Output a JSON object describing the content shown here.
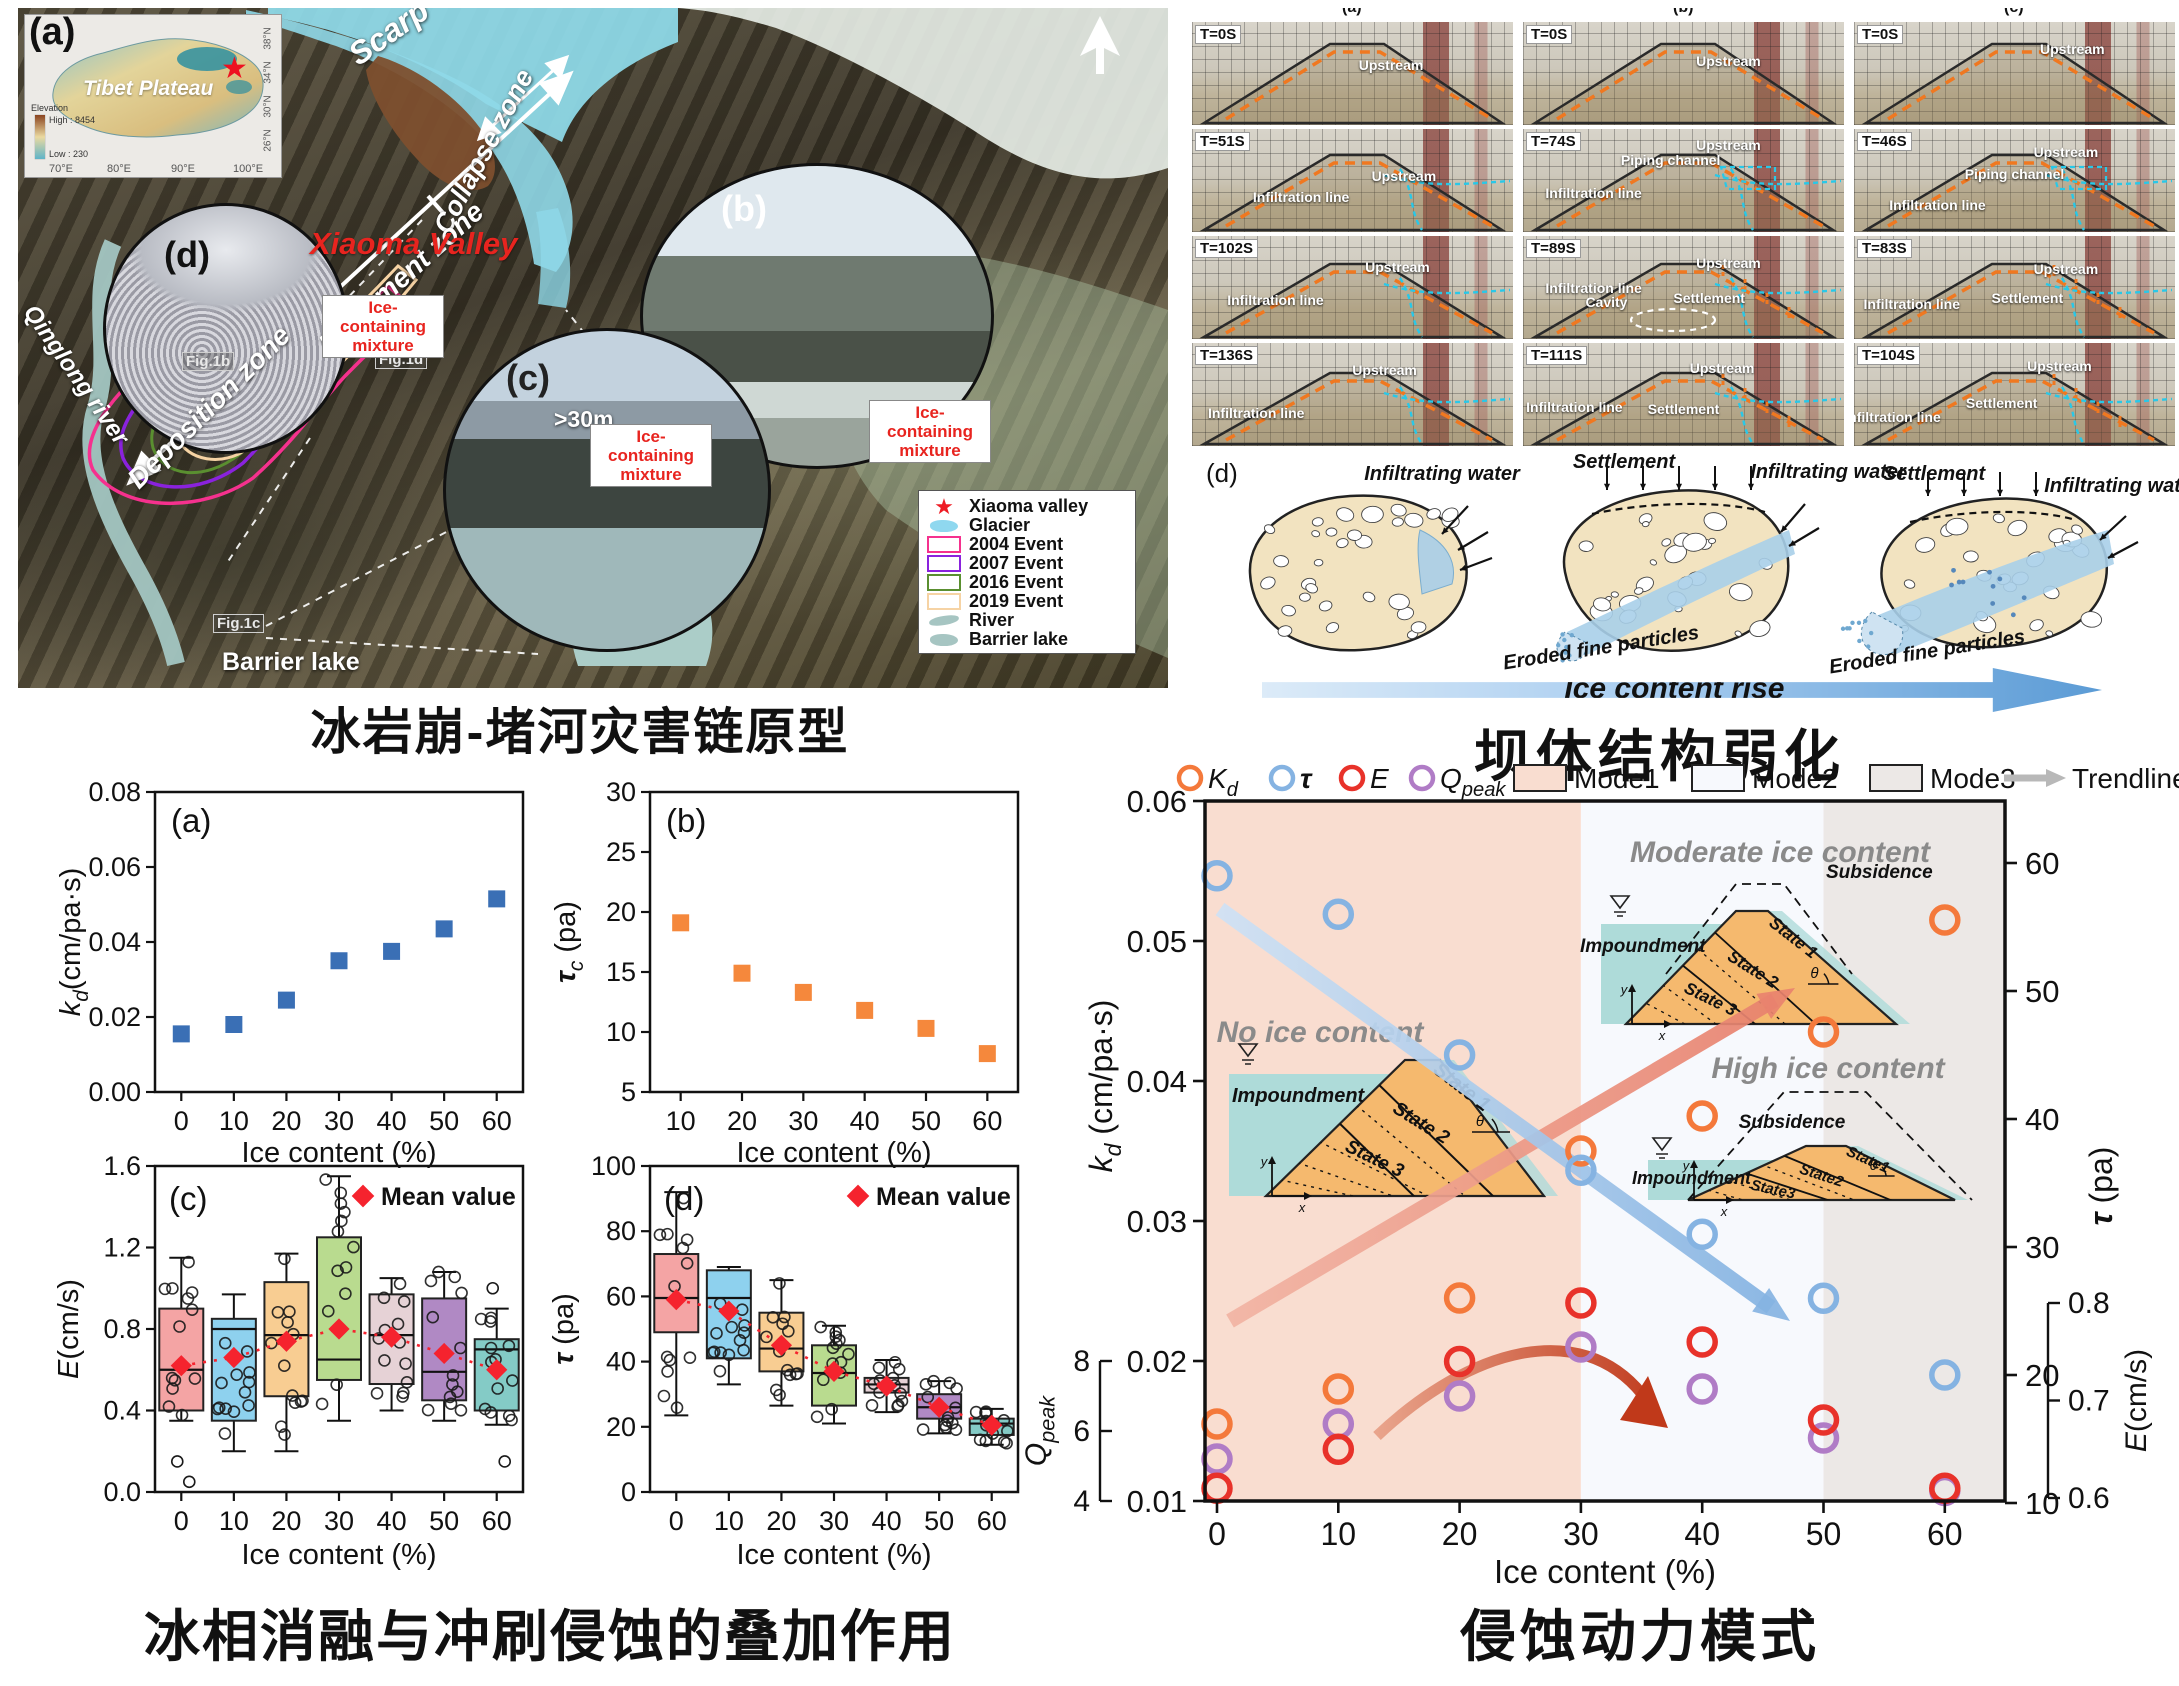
{
  "captions": {
    "map": "冰岩崩-堵河灾害链原型",
    "dam": "坝体结构弱化",
    "mech": "冰相消融与冲刷侵蚀的叠加作用",
    "mode": "侵蚀动力模式"
  },
  "map": {
    "panel_label": "(a)",
    "inset": {
      "title": "Tibet Plateau",
      "elevation": "Elevation",
      "high": "High : 8454",
      "low": "Low : 230",
      "lons": [
        "70°E",
        "80°E",
        "90°E",
        "100°E"
      ],
      "lats": [
        "38°N",
        "34°N",
        "30°N",
        "26°N"
      ]
    },
    "labels": {
      "scarp": "Scarp",
      "collapse_zone": "Collapse zone",
      "movement_zone": "Movement zone",
      "deposition_zone": "Deposition zone",
      "valley": "Xiaoma Valley",
      "qinglong_river": "Qinglong river",
      "barrier_lake": "Barrier lake",
      "fig1b": "Fig.1b",
      "fig1c": "Fig.1c",
      "fig1d": "Fig.1d",
      "inset_b": "(b)",
      "inset_c": "(c)",
      "inset_d": "(d)",
      "height": ">30m",
      "ice_mixture": "Ice-containing mixture"
    },
    "legend": [
      {
        "label": "Xiaoma valley",
        "swatch": "star",
        "color": "#ee1c25"
      },
      {
        "label": "Glacier",
        "swatch": "lake",
        "color": "#8fd8ef"
      },
      {
        "label": "2004 Event",
        "swatch": "rect",
        "color": "#f5318e"
      },
      {
        "label": "2007 Event",
        "swatch": "rect",
        "color": "#8a22dd"
      },
      {
        "label": "2016 Event",
        "swatch": "rect",
        "color": "#5a8f30"
      },
      {
        "label": "2019 Event",
        "swatch": "rect",
        "color": "#f6d3a4"
      },
      {
        "label": "River",
        "swatch": "river",
        "color": "#a6c5c2"
      },
      {
        "label": "Barrier lake",
        "swatch": "lake",
        "color": "#a6c5c2"
      }
    ]
  },
  "experiments": {
    "col_labels": [
      "(a)",
      "(b)",
      "(c)"
    ],
    "rows": [
      [
        {
          "t": "T=0S",
          "ann": [
            [
              "Upstream",
              62,
              42
            ]
          ],
          "f": {}
        },
        {
          "t": "T=0S",
          "ann": [
            [
              "Upstream",
              64,
              38
            ]
          ],
          "f": {}
        },
        {
          "t": "T=0S",
          "ann": [
            [
              "Upstream",
              68,
              26
            ]
          ],
          "f": {}
        }
      ],
      [
        {
          "t": "T=51S",
          "ann": [
            [
              "Upstream",
              66,
              46
            ],
            [
              "Infiltration line",
              34,
              66
            ]
          ],
          "f": {
            "infil": true
          }
        },
        {
          "t": "T=74S",
          "ann": [
            [
              "Upstream",
              64,
              16
            ],
            [
              "Piping channel",
              46,
              30
            ],
            [
              "Infiltration line",
              22,
              62
            ]
          ],
          "f": {
            "infil": true,
            "piping": true
          }
        },
        {
          "t": "T=46S",
          "ann": [
            [
              "Upstream",
              66,
              22
            ],
            [
              "Piping channel",
              50,
              44
            ],
            [
              "Infiltration line",
              26,
              74
            ]
          ],
          "f": {
            "infil": true,
            "piping": true
          }
        }
      ],
      [
        {
          "t": "T=102S",
          "ann": [
            [
              "Upstream",
              64,
              30
            ],
            [
              "Infiltration line",
              26,
              62
            ]
          ],
          "f": {
            "infil": true
          }
        },
        {
          "t": "T=89S",
          "ann": [
            [
              "Upstream",
              64,
              26
            ],
            [
              "Infiltration line",
              22,
              50
            ],
            [
              "Cavity",
              26,
              64
            ],
            [
              "Settlement",
              58,
              60
            ]
          ],
          "f": {
            "infil": true,
            "settle": true,
            "cavity": true
          }
        },
        {
          "t": "T=83S",
          "ann": [
            [
              "Upstream",
              66,
              32
            ],
            [
              "Infiltration line",
              18,
              66
            ],
            [
              "Settlement",
              54,
              60
            ]
          ],
          "f": {
            "infil": true,
            "settle": true
          }
        }
      ],
      [
        {
          "t": "T=136S",
          "ann": [
            [
              "Upstream",
              60,
              26
            ],
            [
              "Infiltration line",
              20,
              68
            ]
          ],
          "f": {
            "infil": true
          }
        },
        {
          "t": "T=111S",
          "ann": [
            [
              "Upstream",
              62,
              24
            ],
            [
              "Infiltration line",
              16,
              62
            ],
            [
              "Settlement",
              50,
              64
            ]
          ],
          "f": {
            "infil": true,
            "settle": true
          }
        },
        {
          "t": "T=104S",
          "ann": [
            [
              "Upstream",
              64,
              22
            ],
            [
              "Infiltration line",
              12,
              72
            ],
            [
              "Settlement",
              46,
              58
            ]
          ],
          "f": {
            "infil": true,
            "settle": true
          }
        }
      ]
    ],
    "schematic": {
      "label": "(d)",
      "infiltrating": "Infiltrating water",
      "settlement": "Settlement",
      "eroded": "Eroded fine particles",
      "arrow": "Ice content rise"
    }
  },
  "chart_data": [
    {
      "id": "a",
      "type": "scatter",
      "panel": "(a)",
      "marker": "square",
      "color": "#3a6fb5",
      "xlabel": "Ice content (%)",
      "ylabel_parts": [
        [
          "k",
          "i"
        ],
        [
          "d",
          "si"
        ],
        [
          "(cm/pa·s)",
          "n"
        ]
      ],
      "xlim": [
        -5,
        65
      ],
      "ylim": [
        0,
        0.08
      ],
      "xticks": [
        0,
        10,
        20,
        30,
        40,
        50,
        60
      ],
      "yticks": [
        0,
        0.02,
        0.04,
        0.06,
        0.08
      ],
      "ytick_labels": [
        "0.00",
        "0.02",
        "0.04",
        "0.06",
        "0.08"
      ],
      "x": [
        0,
        10,
        20,
        30,
        40,
        50,
        60
      ],
      "y": [
        0.0155,
        0.018,
        0.0245,
        0.035,
        0.0375,
        0.0435,
        0.0515
      ]
    },
    {
      "id": "b",
      "type": "scatter",
      "panel": "(b)",
      "marker": "square",
      "color": "#f5883c",
      "xlabel": "Ice content (%)",
      "ylabel_parts": [
        [
          "τ",
          "bi"
        ],
        [
          "c",
          "si"
        ],
        [
          " (pa)",
          "n"
        ]
      ],
      "xlim": [
        5,
        65
      ],
      "ylim": [
        5,
        30
      ],
      "xticks": [
        10,
        20,
        30,
        40,
        50,
        60
      ],
      "yticks": [
        5,
        10,
        15,
        20,
        25,
        30
      ],
      "ytick_labels": [
        "5",
        "10",
        "15",
        "20",
        "25",
        "30"
      ],
      "x": [
        10,
        20,
        30,
        40,
        50,
        60
      ],
      "y": [
        19.1,
        14.9,
        13.3,
        11.8,
        10.3,
        8.2
      ]
    },
    {
      "id": "c",
      "type": "box",
      "panel": "(c)",
      "xlabel": "Ice content (%)",
      "ylabel_parts": [
        [
          "E",
          "i"
        ],
        [
          "(cm/s)",
          "n"
        ]
      ],
      "legend": "Mean value",
      "mean_color": "#f5232e",
      "xlim": [
        -5,
        65
      ],
      "ylim": [
        0,
        1.6
      ],
      "yticks": [
        0,
        0.4,
        0.8,
        1.2,
        1.6
      ],
      "ytick_labels": [
        "0.0",
        "0.4",
        "0.8",
        "1.2",
        "1.6"
      ],
      "categories": [
        0,
        10,
        20,
        30,
        40,
        50,
        60
      ],
      "box_colors": [
        "#f4a4a4",
        "#8ed1ee",
        "#f8cd92",
        "#b9db8f",
        "#e6d2d6",
        "#b089c4",
        "#84cbc6"
      ],
      "boxes": [
        [
          0.35,
          0.4,
          0.6,
          0.9,
          1.15
        ],
        [
          0.2,
          0.35,
          0.8,
          0.85,
          0.97
        ],
        [
          0.2,
          0.47,
          0.77,
          1.03,
          1.17
        ],
        [
          0.35,
          0.55,
          0.65,
          1.25,
          1.55
        ],
        [
          0.4,
          0.53,
          0.77,
          0.97,
          1.05
        ],
        [
          0.35,
          0.45,
          0.59,
          0.95,
          1.08
        ],
        [
          0.33,
          0.4,
          0.7,
          0.75,
          0.9
        ]
      ],
      "means": [
        0.62,
        0.66,
        0.74,
        0.8,
        0.76,
        0.68,
        0.6
      ],
      "outliers": [
        [
          0.15,
          0.05
        ],
        [],
        [],
        [],
        [],
        [],
        [
          1.0,
          0.15
        ]
      ]
    },
    {
      "id": "d",
      "type": "box",
      "panel": "(d)",
      "xlabel": "Ice content (%)",
      "ylabel_parts": [
        [
          "τ",
          "bi"
        ],
        [
          " (pa)",
          "n"
        ]
      ],
      "legend": "Mean value",
      "mean_color": "#f5232e",
      "xlim": [
        -5,
        65
      ],
      "ylim": [
        0,
        100
      ],
      "yticks": [
        0,
        20,
        40,
        60,
        80,
        100
      ],
      "ytick_labels": [
        "0",
        "20",
        "40",
        "60",
        "80",
        "100"
      ],
      "categories": [
        0,
        10,
        20,
        30,
        40,
        50,
        60
      ],
      "box_colors": [
        "#f4a4a4",
        "#8ed1ee",
        "#f8cd92",
        "#b9db8f",
        "#e6d2d6",
        "#b089c4",
        "#84cbc6"
      ],
      "boxes": [
        [
          23.5,
          49,
          59.5,
          73,
          92
        ],
        [
          33,
          41,
          59.5,
          68,
          69
        ],
        [
          26.5,
          37,
          44,
          55,
          65
        ],
        [
          21,
          26.5,
          36.5,
          45,
          51
        ],
        [
          24.5,
          30.5,
          33,
          35,
          40.5
        ],
        [
          18,
          22.5,
          26,
          30,
          34
        ],
        [
          14.5,
          17.5,
          21,
          22.5,
          25.5
        ]
      ],
      "means": [
        59,
        55.5,
        45,
        37,
        32.5,
        26,
        20.5
      ],
      "outliers": [
        [],
        [],
        [],
        [],
        [],
        [],
        []
      ]
    },
    {
      "id": "mode",
      "type": "mode-chart",
      "xlabel": "Ice content (%)",
      "xticks": [
        0,
        10,
        20,
        30,
        40,
        50,
        60
      ],
      "x": [
        0,
        10,
        20,
        30,
        40,
        50,
        60
      ],
      "left_axis": {
        "label_parts": [
          [
            "k",
            "i"
          ],
          [
            "d",
            "si"
          ],
          [
            " (cm/pa·s)",
            "n"
          ]
        ],
        "ticks": [
          0.01,
          0.02,
          0.03,
          0.04,
          0.05,
          0.06
        ],
        "tick_labels": [
          "0.01",
          "0.02",
          "0.03",
          "0.04",
          "0.05",
          "0.06"
        ],
        "lim": [
          0.01,
          0.06
        ]
      },
      "right_axis": {
        "label_parts": [
          [
            "τ",
            "bi"
          ],
          [
            " (pa)",
            "n"
          ]
        ],
        "ticks": [
          10,
          20,
          30,
          40,
          50,
          60
        ],
        "lim": [
          10,
          60
        ]
      },
      "q_axis": {
        "label_parts": [
          [
            "Q",
            "i"
          ],
          [
            "peak",
            "si"
          ]
        ],
        "ticks": [
          4,
          6,
          8
        ]
      },
      "e_axis": {
        "label_parts": [
          [
            "E",
            "i"
          ],
          [
            "(cm/s)",
            "n"
          ]
        ],
        "ticks": [
          0.6,
          0.7,
          0.8
        ],
        "tick_labels": [
          "0.6",
          "0.7",
          "0.8"
        ]
      },
      "legend": {
        "kd_parts": [
          [
            "K",
            "i"
          ],
          [
            "d",
            "si"
          ]
        ],
        "tau_parts": [
          [
            "τ",
            "bi"
          ]
        ],
        "e_parts": [
          [
            "E",
            "i"
          ]
        ],
        "q_parts": [
          [
            "Q",
            "i"
          ],
          [
            "peak",
            "si"
          ]
        ],
        "mode1": "Mode1",
        "mode2": "Mode2",
        "mode3": "Mode3",
        "trend": "Trendline"
      },
      "modes": [
        {
          "label": "Mode1",
          "color": "#f9ddd0",
          "x0": -1,
          "x1": 30
        },
        {
          "label": "Mode2",
          "color": "#f7f9fd",
          "x0": 30,
          "x1": 50
        },
        {
          "label": "Mode3",
          "color": "#ece8e6",
          "x0": 50,
          "x1": 65
        }
      ],
      "series": {
        "kd": {
          "color": "#f4793b",
          "axis": "kd",
          "values": [
            0.0155,
            0.018,
            0.0245,
            0.035,
            0.0375,
            0.0435,
            0.0515
          ]
        },
        "tau": {
          "color": "#85b3e2",
          "axis": "tau",
          "values": [
            59,
            56,
            45,
            36,
            31,
            26,
            20
          ]
        },
        "e": {
          "color": "#e8322a",
          "axis": "e",
          "values": [
            0.61,
            0.65,
            0.74,
            0.8,
            0.76,
            0.68,
            0.61
          ]
        },
        "q": {
          "color": "#b07cc6",
          "axis": "q",
          "values": [
            5.2,
            6.2,
            7.0,
            8.4,
            7.2,
            5.8,
            4.3
          ]
        }
      },
      "regions": {
        "no_ice": "No ice content",
        "moderate": "Moderate ice content",
        "high": "High ice content"
      },
      "inset_labels": {
        "impoundment": "Impoundment",
        "subsidence": "Subsidence",
        "state1": "State 1",
        "state2": "State 2",
        "state3": "State 3",
        "state1c": "State1",
        "state2c": "State2",
        "state3c": "State3",
        "theta": "θ",
        "ax": "x",
        "ay": "y"
      }
    }
  ]
}
